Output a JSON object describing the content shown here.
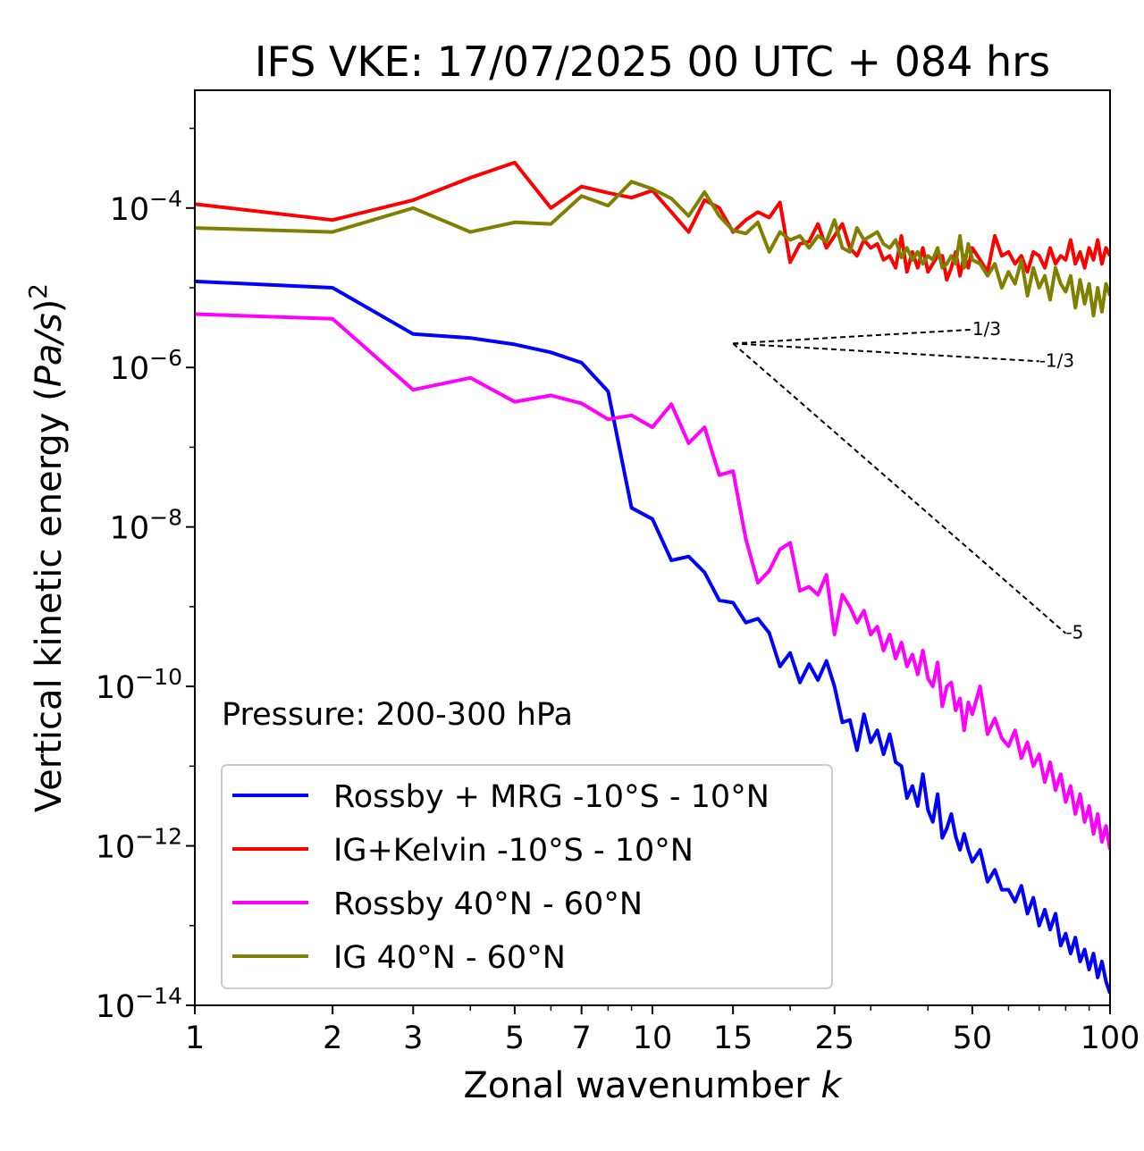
{
  "chart_data": {
    "type": "line",
    "title": "IFS VKE: 17/07/2025 00 UTC + 084 hrs",
    "xlabel": "Zonal wavenumber k",
    "ylabel": "Vertical kinetic energy (Pa/s)²",
    "xscale": "log",
    "yscale": "log",
    "xlim": [
      1,
      100
    ],
    "ylim": [
      1e-14,
      0.003
    ],
    "grid": false,
    "legend_position": "lower-left",
    "x_ticks": [
      {
        "value": 1,
        "label": "1"
      },
      {
        "value": 2,
        "label": "2"
      },
      {
        "value": 3,
        "label": "3"
      },
      {
        "value": 5,
        "label": "5"
      },
      {
        "value": 7,
        "label": "7"
      },
      {
        "value": 10,
        "label": "10"
      },
      {
        "value": 15,
        "label": "15"
      },
      {
        "value": 25,
        "label": "25"
      },
      {
        "value": 50,
        "label": "50"
      },
      {
        "value": 100,
        "label": "100"
      }
    ],
    "y_ticks": [
      {
        "value": -4,
        "base": "10",
        "exp": "−4"
      },
      {
        "value": -6,
        "base": "10",
        "exp": "−6"
      },
      {
        "value": -8,
        "base": "10",
        "exp": "−8"
      },
      {
        "value": -10,
        "base": "10",
        "exp": "−10"
      },
      {
        "value": -12,
        "base": "10",
        "exp": "−12"
      },
      {
        "value": -14,
        "base": "10",
        "exp": "−14"
      }
    ],
    "annotation": "Pressure: 200-300 hPa",
    "reference_lines": [
      {
        "label": "1/3",
        "slope": 0.3333,
        "x0": 15,
        "y0": 2e-06,
        "x1": 50
      },
      {
        "label": "-1/3",
        "slope": -0.3333,
        "x0": 15,
        "y0": 2e-06,
        "x1": 70
      },
      {
        "label": "-5",
        "slope": -5,
        "x0": 15,
        "y0": 2e-06,
        "x1": 80
      }
    ],
    "series": [
      {
        "name": "Rossby + MRG -10°S - 10°N",
        "color": "#0000ff",
        "x": [
          1,
          2,
          3,
          4,
          5,
          6,
          7,
          8,
          9,
          10,
          11,
          12,
          13,
          14,
          15,
          16,
          17,
          18,
          19,
          20,
          21,
          22,
          23,
          24,
          25,
          26,
          27,
          28,
          29,
          30,
          31,
          32,
          33,
          34,
          35,
          36,
          37,
          38,
          39,
          40,
          41,
          42,
          43,
          44,
          45,
          46,
          47,
          48,
          49,
          50,
          52,
          54,
          56,
          58,
          60,
          62,
          64,
          66,
          68,
          70,
          72,
          74,
          76,
          78,
          80,
          82,
          84,
          86,
          88,
          90,
          92,
          94,
          96,
          98,
          100
        ],
        "log10_values": [
          -4.92,
          -5.0,
          -5.58,
          -5.63,
          -5.71,
          -5.81,
          -5.94,
          -6.3,
          -7.76,
          -7.9,
          -8.42,
          -8.37,
          -8.57,
          -8.92,
          -8.95,
          -9.2,
          -9.15,
          -9.33,
          -9.75,
          -9.58,
          -9.95,
          -9.72,
          -9.92,
          -9.68,
          -10.0,
          -10.45,
          -10.42,
          -10.8,
          -10.35,
          -10.7,
          -10.55,
          -10.85,
          -10.6,
          -10.95,
          -11.0,
          -11.4,
          -11.25,
          -11.5,
          -11.1,
          -11.55,
          -11.7,
          -11.35,
          -11.9,
          -11.78,
          -11.6,
          -11.88,
          -12.05,
          -11.85,
          -12.05,
          -12.2,
          -12.05,
          -12.45,
          -12.3,
          -12.55,
          -12.55,
          -12.7,
          -12.5,
          -12.85,
          -12.65,
          -13.0,
          -12.8,
          -13.05,
          -12.85,
          -13.25,
          -13.1,
          -13.35,
          -13.15,
          -13.45,
          -13.3,
          -13.55,
          -13.35,
          -13.65,
          -13.45,
          -13.7,
          -13.85
        ]
      },
      {
        "name": "IG+Kelvin -10°S - 10°N",
        "color": "#ff0000",
        "x": [
          1,
          2,
          3,
          4,
          5,
          6,
          7,
          8,
          9,
          10,
          11,
          12,
          13,
          14,
          15,
          16,
          17,
          18,
          19,
          20,
          21,
          22,
          23,
          24,
          25,
          26,
          27,
          28,
          29,
          30,
          31,
          32,
          33,
          34,
          35,
          36,
          37,
          38,
          39,
          40,
          41,
          42,
          43,
          44,
          45,
          46,
          47,
          48,
          49,
          50,
          52,
          54,
          56,
          58,
          60,
          62,
          64,
          66,
          68,
          70,
          72,
          74,
          76,
          78,
          80,
          82,
          84,
          86,
          88,
          90,
          92,
          94,
          96,
          98,
          100
        ],
        "log10_values": [
          -3.95,
          -4.15,
          -3.9,
          -3.62,
          -3.43,
          -4.0,
          -3.73,
          -3.81,
          -3.87,
          -3.78,
          -4.05,
          -4.3,
          -3.9,
          -4.0,
          -4.3,
          -4.15,
          -4.05,
          -4.12,
          -3.93,
          -4.68,
          -4.45,
          -4.42,
          -4.2,
          -4.5,
          -4.35,
          -4.2,
          -4.5,
          -4.6,
          -4.4,
          -4.5,
          -4.45,
          -4.65,
          -4.6,
          -4.75,
          -4.35,
          -4.8,
          -4.55,
          -4.75,
          -4.5,
          -4.8,
          -4.7,
          -4.6,
          -4.6,
          -4.9,
          -4.75,
          -4.55,
          -4.85,
          -4.6,
          -4.75,
          -4.5,
          -4.65,
          -4.8,
          -4.35,
          -4.6,
          -4.55,
          -4.7,
          -4.6,
          -4.8,
          -4.55,
          -4.6,
          -4.75,
          -4.5,
          -4.7,
          -4.6,
          -4.65,
          -4.4,
          -4.7,
          -4.55,
          -4.75,
          -4.5,
          -4.65,
          -4.4,
          -4.7,
          -4.5,
          -4.6
        ]
      },
      {
        "name": "Rossby 40°N - 60°N",
        "color": "#ff00ff",
        "x": [
          1,
          2,
          3,
          4,
          5,
          6,
          7,
          8,
          9,
          10,
          11,
          12,
          13,
          14,
          15,
          16,
          17,
          18,
          19,
          20,
          21,
          22,
          23,
          24,
          25,
          26,
          27,
          28,
          29,
          30,
          31,
          32,
          33,
          34,
          35,
          36,
          37,
          38,
          39,
          40,
          41,
          42,
          43,
          44,
          45,
          46,
          47,
          48,
          49,
          50,
          52,
          54,
          56,
          58,
          60,
          62,
          64,
          66,
          68,
          70,
          72,
          74,
          76,
          78,
          80,
          82,
          84,
          86,
          88,
          90,
          92,
          94,
          96,
          98,
          100
        ],
        "log10_values": [
          -5.33,
          -5.39,
          -6.28,
          -6.13,
          -6.43,
          -6.35,
          -6.45,
          -6.65,
          -6.6,
          -6.75,
          -6.46,
          -6.95,
          -6.75,
          -7.35,
          -7.3,
          -8.15,
          -8.7,
          -8.55,
          -8.28,
          -8.2,
          -8.8,
          -8.75,
          -8.85,
          -8.6,
          -9.35,
          -8.85,
          -9.0,
          -9.2,
          -9.05,
          -9.35,
          -9.25,
          -9.55,
          -9.35,
          -9.65,
          -9.45,
          -9.75,
          -9.6,
          -9.85,
          -9.55,
          -9.9,
          -10.0,
          -9.7,
          -10.25,
          -10.0,
          -9.95,
          -10.3,
          -10.15,
          -10.55,
          -10.2,
          -10.35,
          -10.0,
          -10.6,
          -10.4,
          -10.65,
          -10.75,
          -10.55,
          -10.9,
          -10.7,
          -11.0,
          -10.85,
          -11.2,
          -10.95,
          -11.3,
          -11.1,
          -11.45,
          -11.25,
          -11.6,
          -11.35,
          -11.7,
          -11.5,
          -11.85,
          -11.6,
          -11.95,
          -11.75,
          -12.05
        ]
      },
      {
        "name": "IG 40°N - 60°N",
        "color": "#808000",
        "x": [
          1,
          2,
          3,
          4,
          5,
          6,
          7,
          8,
          9,
          10,
          11,
          12,
          13,
          14,
          15,
          16,
          17,
          18,
          19,
          20,
          21,
          22,
          23,
          24,
          25,
          26,
          27,
          28,
          29,
          30,
          31,
          32,
          33,
          34,
          35,
          36,
          37,
          38,
          39,
          40,
          41,
          42,
          43,
          44,
          45,
          46,
          47,
          48,
          49,
          50,
          52,
          54,
          56,
          58,
          60,
          62,
          64,
          66,
          68,
          70,
          72,
          74,
          76,
          78,
          80,
          82,
          84,
          86,
          88,
          90,
          92,
          94,
          96,
          98,
          100
        ],
        "log10_values": [
          -4.25,
          -4.3,
          -4.0,
          -4.3,
          -4.18,
          -4.2,
          -3.85,
          -3.97,
          -3.67,
          -3.76,
          -3.88,
          -4.1,
          -3.8,
          -4.1,
          -4.28,
          -4.32,
          -4.18,
          -4.55,
          -4.3,
          -4.4,
          -4.35,
          -4.5,
          -4.35,
          -4.42,
          -4.15,
          -4.5,
          -4.55,
          -4.25,
          -4.4,
          -4.35,
          -4.3,
          -4.45,
          -4.5,
          -4.4,
          -4.62,
          -4.5,
          -4.65,
          -4.55,
          -4.7,
          -4.6,
          -4.65,
          -4.5,
          -4.75,
          -4.7,
          -4.6,
          -4.7,
          -4.35,
          -4.75,
          -4.45,
          -4.65,
          -4.7,
          -4.85,
          -4.7,
          -5.0,
          -4.8,
          -4.95,
          -4.65,
          -5.1,
          -4.75,
          -5.0,
          -4.85,
          -5.15,
          -4.75,
          -4.95,
          -5.05,
          -4.85,
          -5.25,
          -4.9,
          -5.2,
          -4.95,
          -5.35,
          -5.0,
          -5.3,
          -4.95,
          -5.1
        ]
      }
    ]
  }
}
